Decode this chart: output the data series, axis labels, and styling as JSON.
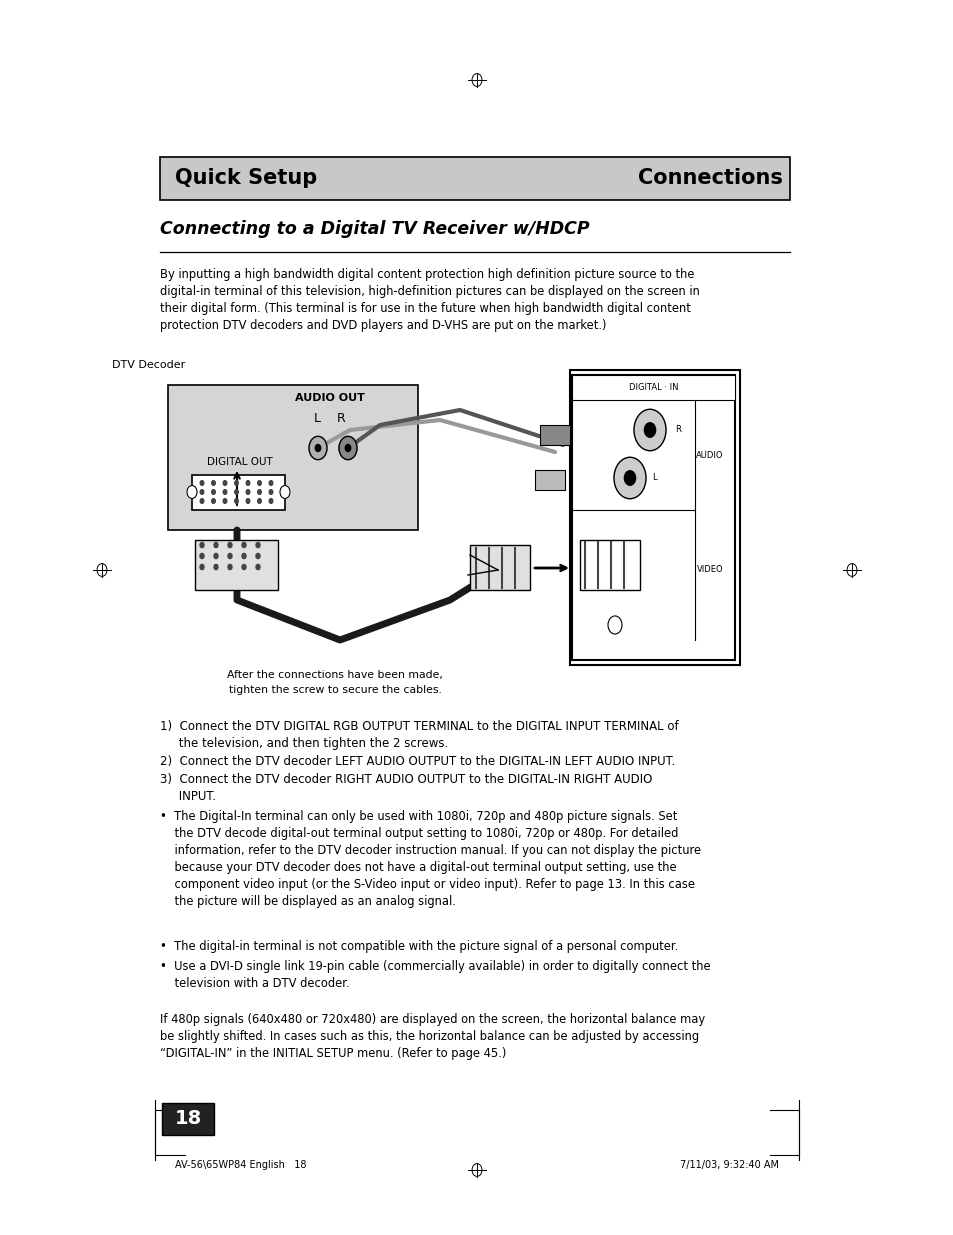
{
  "page_bg": "#ffffff",
  "header_bg": "#c8c8c8",
  "header_left": "Quick Setup",
  "header_right": "Connections",
  "header_fontsize": 15,
  "section_title": "Connecting to a Digital TV Receiver w/HDCP",
  "section_title_fontsize": 12.5,
  "body_text_intro": "By inputting a high bandwidth digital content protection high definition picture source to the\ndigital-in terminal of this television, high-definition pictures can be displayed on the screen in\ntheir digital form. (This terminal is for use in the future when high bandwidth digital content\nprotection DTV decoders and DVD players and D-VHS are put on the market.)",
  "diagram_label_dtv": "DTV Decoder",
  "diagram_label_audio_out": "AUDIO OUT",
  "diagram_label_lr": "L    R",
  "diagram_label_digital_out": "DIGITAL OUT",
  "diagram_caption_line1": "After the connections have been made,",
  "diagram_caption_line2": "tighten the screw to secure the cables.",
  "step1": "1)  Connect the DTV DIGITAL RGB OUTPUT TERMINAL to the DIGITAL INPUT TERMINAL of\n     the television, and then tighten the 2 screws.",
  "step2": "2)  Connect the DTV decoder LEFT AUDIO OUTPUT to the DIGITAL-IN LEFT AUDIO INPUT.",
  "step3": "3)  Connect the DTV decoder RIGHT AUDIO OUTPUT to the DIGITAL-IN RIGHT AUDIO\n     INPUT.",
  "bullet1": "•  The Digital-In terminal can only be used with 1080i, 720p and 480p picture signals. Set\n    the DTV decode digital-out terminal output setting to 1080i, 720p or 480p. For detailed\n    information, refer to the DTV decoder instruction manual. If you can not display the picture\n    because your DTV decoder does not have a digital-out terminal output setting, use the\n    component video input (or the S-Video input or video input). Refer to page 13. In this case\n    the picture will be displayed as an analog signal.",
  "bullet2": "•  The digital-in terminal is not compatible with the picture signal of a personal computer.",
  "bullet3": "•  Use a DVI-D single link 19-pin cable (commercially available) in order to digitally connect the\n    television with a DTV decoder.",
  "footer_note": "If 480p signals (640x480 or 720x480) are displayed on the screen, the horizontal balance may\nbe slightly shifted. In cases such as this, the horizontal balance can be adjusted by accessing\n“DIGITAL-IN” in the INITIAL SETUP menu. (Refer to page 45.)",
  "page_number": "18",
  "footer_left": "AV-56\\65WP84 English   18",
  "footer_right": "7/11/03, 9:32:40 AM"
}
